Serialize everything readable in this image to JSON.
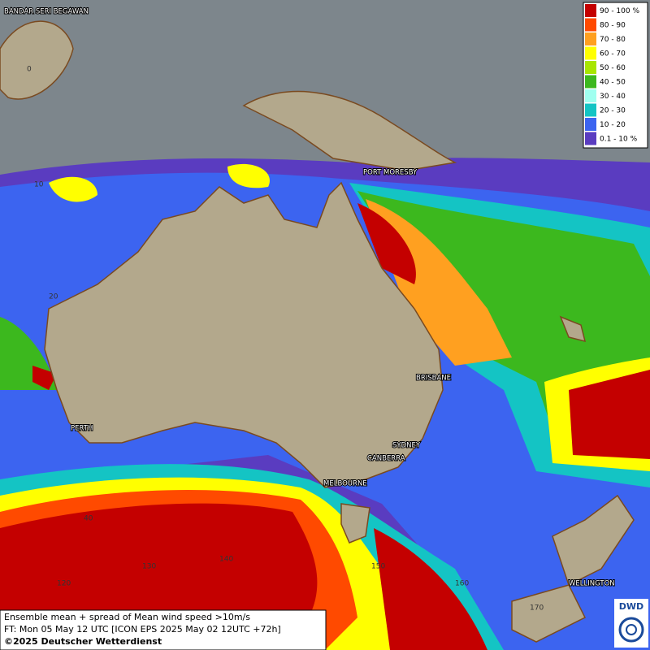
{
  "map": {
    "cities": [
      "BANDAR SERI BEGAWAN",
      "PORT MORESBY",
      "BRISBANE",
      "PERTH",
      "SYDNEY",
      "CANBERRA",
      "MELBOURNE",
      "WELLINGTON"
    ],
    "grid_labels": [
      "0",
      "10",
      "20",
      "40",
      "120",
      "130",
      "140",
      "150",
      "160",
      "170"
    ],
    "legend": [
      {
        "label": "90 - 100 %",
        "color": "#c40000"
      },
      {
        "label": "80 - 90",
        "color": "#ff4a00"
      },
      {
        "label": "70 - 80",
        "color": "#ffa020"
      },
      {
        "label": "60 - 70",
        "color": "#ffff00"
      },
      {
        "label": "50 - 60",
        "color": "#a8e600"
      },
      {
        "label": "40 - 50",
        "color": "#3cb81e"
      },
      {
        "label": "30 - 40",
        "color": "#a0fff0"
      },
      {
        "label": "20 - 30",
        "color": "#14c4c4"
      },
      {
        "label": "10 - 20",
        "color": "#3c64f0"
      },
      {
        "label": "0.1 - 10 %",
        "color": "#5a3cc0"
      }
    ],
    "caption": [
      "Ensemble mean + spread of Mean wind speed >10m/s",
      "FT: Mon 05 May 12 UTC [ICON EPS 2025 May 02 12UTC +72h]",
      "©2025 Deutscher Wetterdienst"
    ],
    "logo": "DWD"
  }
}
